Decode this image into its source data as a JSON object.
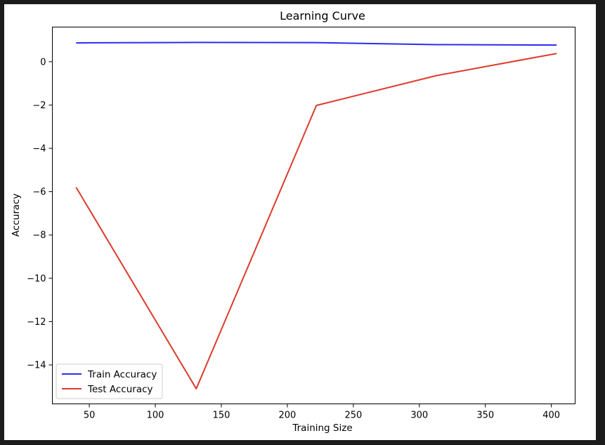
{
  "chart_data": {
    "type": "line",
    "title": "Learning Curve",
    "xlabel": "Training Size",
    "ylabel": "Accuracy",
    "xlim": [
      22,
      418
    ],
    "ylim": [
      -15.8,
      1.6
    ],
    "x_ticks": [
      50,
      100,
      150,
      200,
      250,
      300,
      350,
      400
    ],
    "y_ticks": [
      0,
      -2,
      -4,
      -6,
      -8,
      -10,
      -12,
      -14
    ],
    "x_tick_labels": [
      "50",
      "100",
      "150",
      "200",
      "250",
      "300",
      "350",
      "400"
    ],
    "y_tick_labels": [
      "0",
      "−2",
      "−4",
      "−6",
      "−8",
      "−10",
      "−12",
      "−14"
    ],
    "grid": false,
    "legend_position": "bottom-left",
    "x": [
      40,
      131,
      222,
      313,
      404
    ],
    "series": [
      {
        "name": "Train Accuracy",
        "color": "#2b2bf0",
        "values": [
          0.87,
          0.89,
          0.88,
          0.79,
          0.77
        ]
      },
      {
        "name": "Test Accuracy",
        "color": "#dc3b2c",
        "values": [
          -5.8,
          -15.1,
          -2.02,
          -0.64,
          0.38
        ]
      }
    ]
  }
}
